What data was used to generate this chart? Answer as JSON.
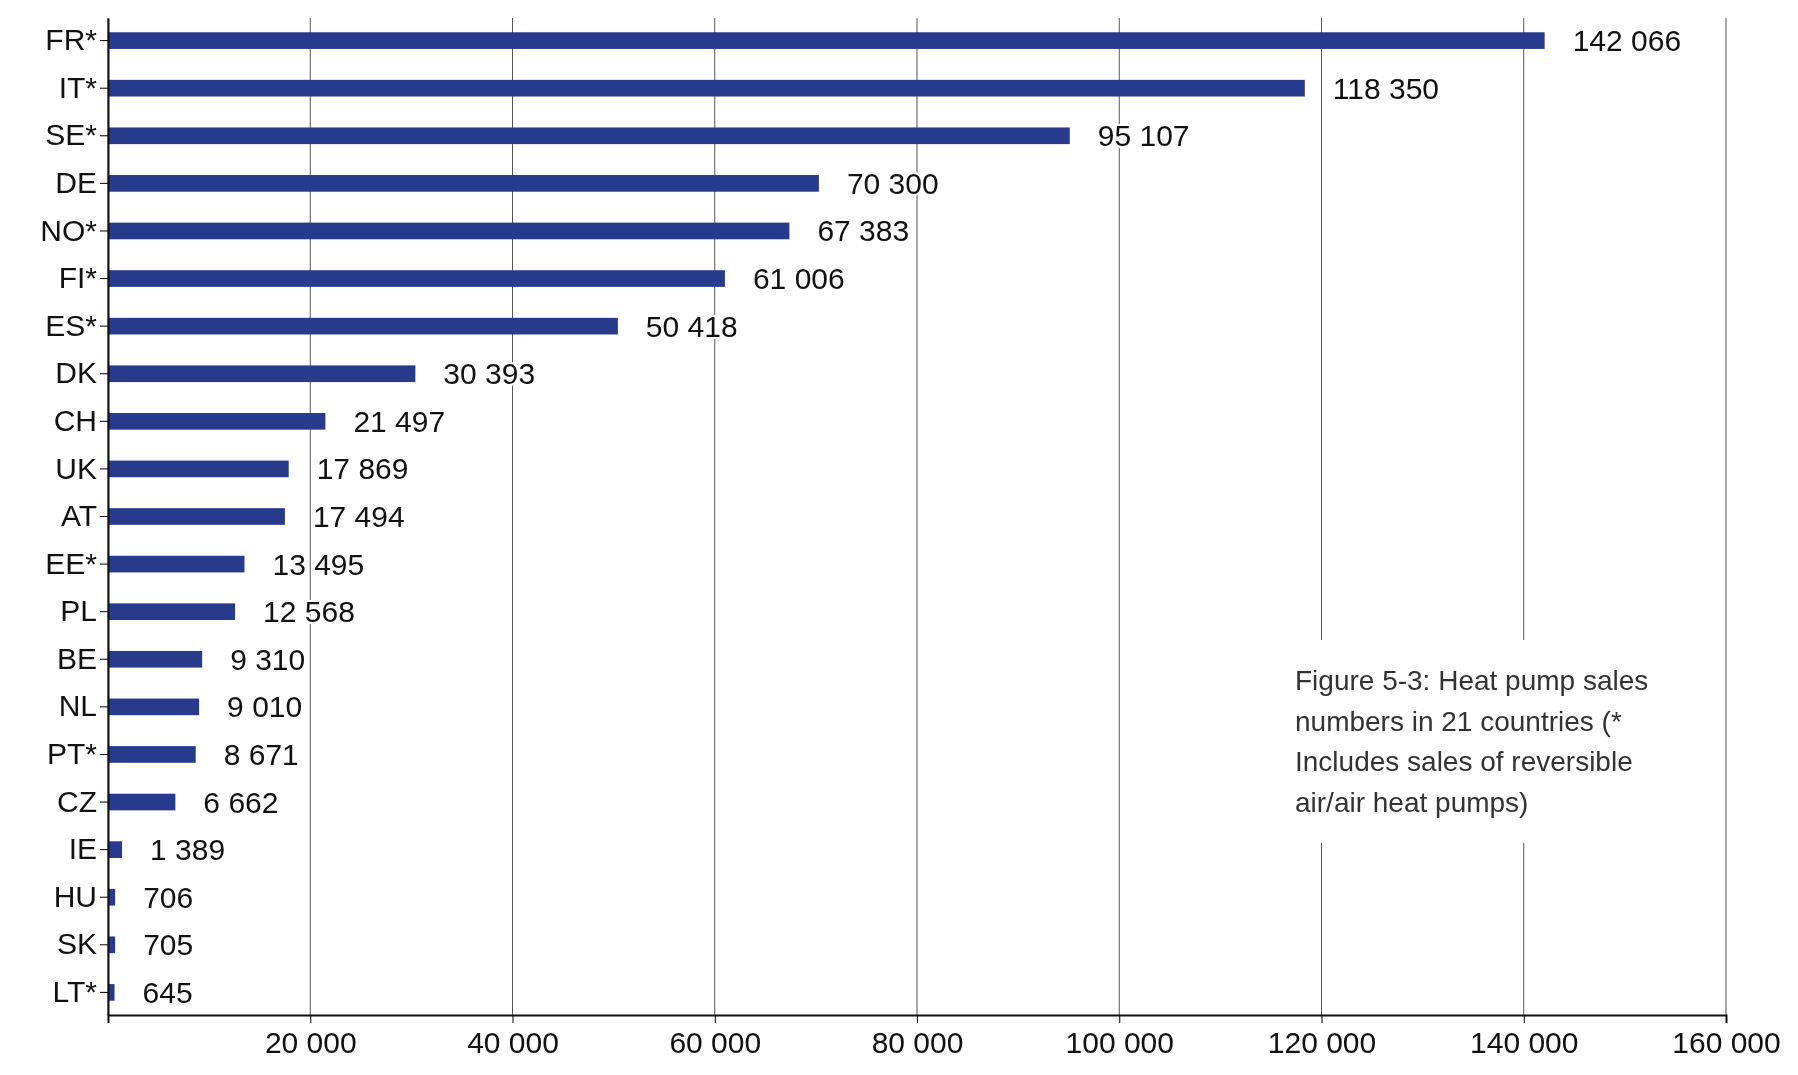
{
  "chart_data": {
    "type": "bar",
    "orientation": "horizontal",
    "categories": [
      "FR*",
      "IT*",
      "SE*",
      "DE",
      "NO*",
      "FI*",
      "ES*",
      "DK",
      "CH",
      "UK",
      "AT",
      "EE*",
      "PL",
      "BE",
      "NL",
      "PT*",
      "CZ",
      "IE",
      "HU",
      "SK",
      "LT*"
    ],
    "values": [
      142066,
      118350,
      95107,
      70300,
      67383,
      61006,
      50418,
      30393,
      21497,
      17869,
      17494,
      13495,
      12568,
      9310,
      9010,
      8671,
      6662,
      1389,
      706,
      705,
      645
    ],
    "value_labels": [
      "142 066",
      "118 350",
      "95 107",
      "70 300",
      "67 383",
      "61 006",
      "50 418",
      "30 393",
      "21 497",
      "17 869",
      "17 494",
      "13 495",
      "12 568",
      "9 310",
      "9 010",
      "8 671",
      "6 662",
      "1 389",
      "706",
      "705",
      "645"
    ],
    "color": "#283a8c",
    "xlim": [
      0,
      160000
    ],
    "xticks": [
      {
        "value": 0,
        "label": null
      },
      {
        "value": 20000,
        "label": "20 000"
      },
      {
        "value": 40000,
        "label": "40 000"
      },
      {
        "value": 60000,
        "label": "60 000"
      },
      {
        "value": 80000,
        "label": "80 000"
      },
      {
        "value": 100000,
        "label": "100 000"
      },
      {
        "value": 120000,
        "label": "120 000"
      },
      {
        "value": 140000,
        "label": "140 000"
      },
      {
        "value": 160000,
        "label": "160 000"
      }
    ],
    "grid": "x",
    "annotations": [
      "Figure 5-3: Heat pump sales numbers in 21 countries (* Includes sales of reversible air/air heat pumps)"
    ]
  }
}
